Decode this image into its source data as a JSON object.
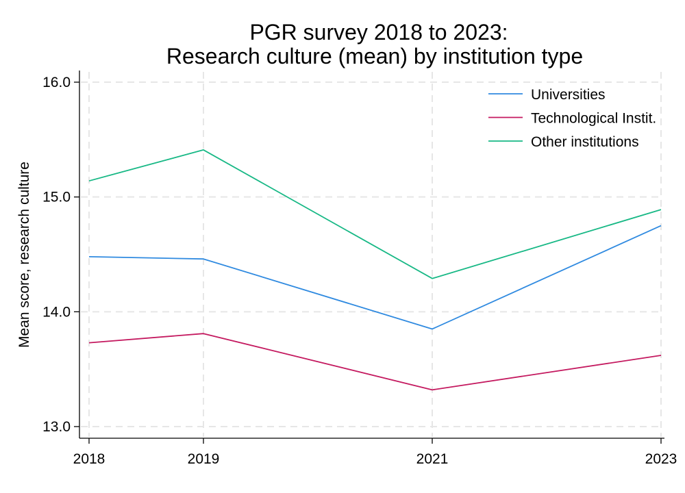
{
  "chart_data": {
    "type": "line",
    "title": [
      "PGR survey 2018 to 2023:",
      "Research culture (mean) by institution type"
    ],
    "ylabel": "Mean score, research culture",
    "xlabel": "",
    "x": [
      2018,
      2019,
      2021,
      2023
    ],
    "x_tick_labels": [
      "2018",
      "2019",
      "2021",
      "2023"
    ],
    "ylim": [
      13.0,
      16.0
    ],
    "y_ticks": [
      13.0,
      14.0,
      15.0,
      16.0
    ],
    "y_tick_labels": [
      "13.0",
      "14.0",
      "15.0",
      "16.0"
    ],
    "grid": true,
    "legend_position": "top-right",
    "series": [
      {
        "name": "Universities",
        "color": "#2f8ae0",
        "values": [
          14.48,
          14.46,
          13.85,
          14.75
        ]
      },
      {
        "name": "Technological Instit.",
        "color": "#c4195f",
        "values": [
          13.73,
          13.81,
          13.32,
          13.62
        ]
      },
      {
        "name": "Other institutions",
        "color": "#17b885",
        "values": [
          15.14,
          15.41,
          14.29,
          14.89
        ]
      }
    ]
  }
}
